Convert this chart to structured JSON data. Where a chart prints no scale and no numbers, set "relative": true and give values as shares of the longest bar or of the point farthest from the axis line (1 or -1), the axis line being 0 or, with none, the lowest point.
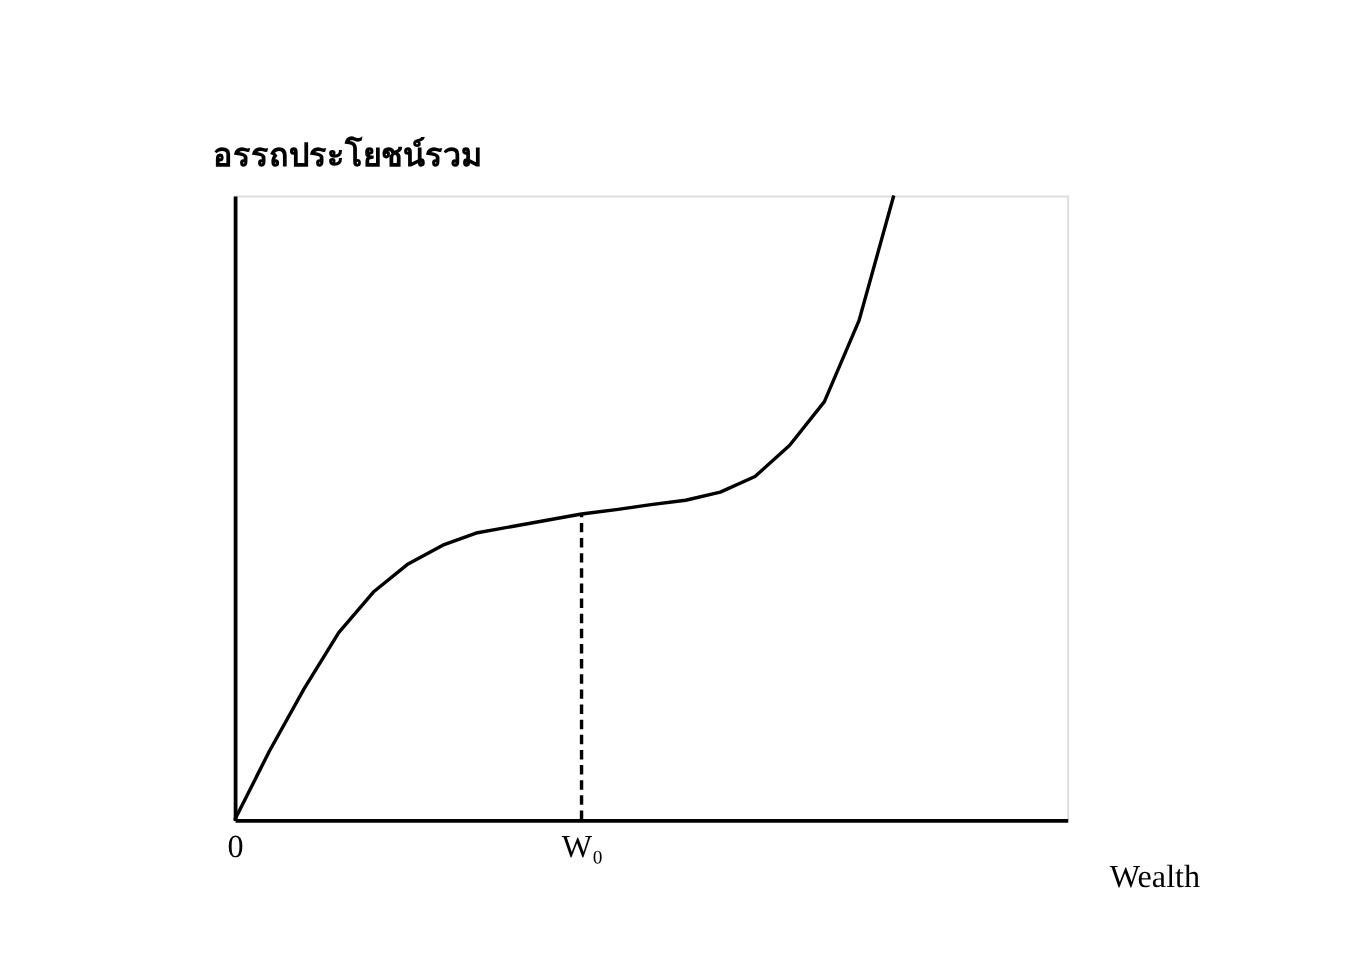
{
  "chart_data": {
    "type": "line",
    "relative": true,
    "ylabel": "อรรถประโยชน์รวม",
    "xlabel": "Wealth",
    "categories": [
      "0",
      null,
      null,
      null,
      null,
      null,
      null,
      null,
      null,
      null,
      "W₀",
      null,
      null,
      null,
      null,
      null,
      null,
      null,
      null,
      null,
      null,
      null,
      null,
      null,
      null
    ],
    "grid": false,
    "marker": "none",
    "ref_lines": [
      {
        "axis": "x",
        "value": "W₀",
        "line_style": "dashed",
        "color": "#000000"
      }
    ],
    "series": [
      {
        "color": "#000000",
        "line_style": "solid",
        "values": [
          0,
          0.11,
          0.21,
          0.3,
          0.365,
          0.41,
          0.44,
          0.46,
          0.47,
          0.48,
          0.49,
          0.497,
          0.505,
          0.512,
          0.525,
          0.55,
          0.6,
          0.67,
          0.8,
          1.0,
          null,
          null,
          null,
          null,
          null
        ]
      }
    ]
  }
}
